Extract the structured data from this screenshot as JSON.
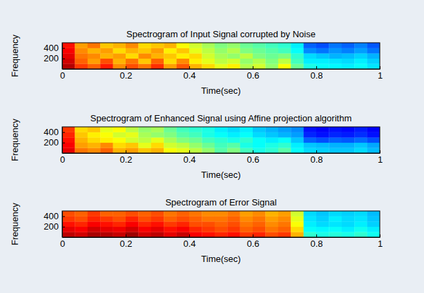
{
  "chart_data": [
    {
      "type": "heatmap",
      "title": "Spectrogram of Input Signal corrupted by Noise",
      "xlabel": "Time(sec)",
      "ylabel": "Frequency",
      "xlim": [
        0,
        1
      ],
      "xticks": [
        0,
        0.2,
        0.4,
        0.6,
        0.8,
        1
      ],
      "ylim": [
        0,
        500
      ],
      "yticks": [
        200,
        400
      ],
      "zlim": [
        0,
        100
      ],
      "x": [
        0,
        0.04,
        0.08,
        0.12,
        0.16,
        0.2,
        0.24,
        0.28,
        0.32,
        0.36,
        0.4,
        0.44,
        0.48,
        0.52,
        0.56,
        0.6,
        0.64,
        0.68,
        0.72,
        0.76,
        0.8,
        0.84,
        0.88,
        0.92,
        0.96
      ],
      "y": [
        0,
        100,
        200,
        300,
        400
      ],
      "z": [
        [
          95,
          82,
          78,
          85,
          74,
          80,
          76,
          83,
          72,
          79,
          70,
          66,
          60,
          64,
          55,
          58,
          52,
          62,
          48,
          40,
          38,
          37,
          36,
          38,
          35
        ],
        [
          92,
          78,
          72,
          80,
          70,
          76,
          68,
          78,
          66,
          74,
          64,
          60,
          56,
          58,
          52,
          55,
          50,
          56,
          44,
          36,
          36,
          35,
          34,
          36,
          33
        ],
        [
          90,
          76,
          74,
          70,
          72,
          66,
          74,
          70,
          68,
          64,
          66,
          58,
          54,
          52,
          56,
          50,
          48,
          50,
          42,
          34,
          32,
          30,
          31,
          33,
          30
        ],
        [
          88,
          74,
          70,
          72,
          66,
          70,
          68,
          72,
          64,
          68,
          60,
          56,
          52,
          55,
          50,
          48,
          46,
          44,
          38,
          26,
          24,
          27,
          25,
          28,
          24
        ],
        [
          86,
          72,
          76,
          68,
          70,
          74,
          66,
          68,
          70,
          62,
          58,
          54,
          50,
          52,
          48,
          46,
          44,
          42,
          36,
          22,
          20,
          24,
          22,
          25,
          21
        ]
      ]
    },
    {
      "type": "heatmap",
      "title": "Spectrogram of Enhanced Signal using Affine projection algorithm",
      "xlabel": "Time(sec)",
      "ylabel": "Frequency",
      "xlim": [
        0,
        1
      ],
      "xticks": [
        0,
        0.2,
        0.4,
        0.6,
        0.8,
        1
      ],
      "ylim": [
        0,
        500
      ],
      "yticks": [
        200,
        400
      ],
      "zlim": [
        0,
        100
      ],
      "x": [
        0,
        0.04,
        0.08,
        0.12,
        0.16,
        0.2,
        0.24,
        0.28,
        0.32,
        0.36,
        0.4,
        0.44,
        0.48,
        0.52,
        0.56,
        0.6,
        0.64,
        0.68,
        0.72,
        0.76,
        0.8,
        0.84,
        0.88,
        0.92,
        0.96
      ],
      "y": [
        0,
        100,
        200,
        300,
        400
      ],
      "z": [
        [
          90,
          76,
          74,
          78,
          70,
          72,
          68,
          70,
          62,
          60,
          56,
          52,
          46,
          50,
          44,
          40,
          42,
          46,
          38,
          34,
          33,
          32,
          32,
          34,
          31
        ],
        [
          88,
          72,
          70,
          74,
          66,
          68,
          60,
          66,
          58,
          56,
          52,
          48,
          44,
          46,
          40,
          38,
          40,
          42,
          36,
          32,
          31,
          30,
          30,
          32,
          29
        ],
        [
          86,
          70,
          66,
          64,
          62,
          58,
          56,
          60,
          54,
          50,
          48,
          44,
          42,
          40,
          42,
          38,
          36,
          38,
          32,
          22,
          20,
          22,
          21,
          23,
          20
        ],
        [
          84,
          68,
          64,
          62,
          58,
          60,
          54,
          52,
          50,
          46,
          44,
          40,
          38,
          36,
          38,
          34,
          32,
          30,
          28,
          16,
          14,
          16,
          15,
          17,
          14
        ],
        [
          82,
          66,
          68,
          60,
          62,
          56,
          52,
          54,
          48,
          44,
          42,
          40,
          36,
          34,
          36,
          32,
          30,
          28,
          26,
          14,
          12,
          14,
          13,
          15,
          12
        ]
      ]
    },
    {
      "type": "heatmap",
      "title": "Spectrogram of Error Signal",
      "xlabel": "Time(sec)",
      "ylabel": "Frequency",
      "xlim": [
        0,
        1
      ],
      "xticks": [
        0,
        0.2,
        0.4,
        0.6,
        0.8,
        1
      ],
      "ylim": [
        0,
        500
      ],
      "yticks": [
        200,
        400
      ],
      "zlim": [
        0,
        100
      ],
      "x": [
        0,
        0.04,
        0.08,
        0.12,
        0.16,
        0.2,
        0.24,
        0.28,
        0.32,
        0.36,
        0.4,
        0.44,
        0.48,
        0.52,
        0.56,
        0.6,
        0.64,
        0.68,
        0.72,
        0.76,
        0.8,
        0.84,
        0.88,
        0.92,
        0.96
      ],
      "y": [
        0,
        100,
        200,
        300,
        400
      ],
      "z": [
        [
          94,
          92,
          96,
          95,
          93,
          97,
          92,
          94,
          90,
          93,
          88,
          86,
          84,
          86,
          82,
          84,
          80,
          82,
          70,
          42,
          40,
          41,
          40,
          42,
          39
        ],
        [
          90,
          88,
          92,
          90,
          89,
          92,
          88,
          90,
          86,
          88,
          84,
          82,
          80,
          82,
          78,
          80,
          76,
          78,
          66,
          38,
          37,
          38,
          36,
          39,
          36
        ],
        [
          86,
          84,
          88,
          86,
          84,
          88,
          84,
          86,
          82,
          84,
          80,
          80,
          78,
          80,
          76,
          78,
          74,
          76,
          62,
          36,
          34,
          35,
          34,
          36,
          33
        ],
        [
          82,
          80,
          84,
          82,
          80,
          84,
          80,
          82,
          78,
          80,
          78,
          76,
          76,
          78,
          74,
          76,
          72,
          74,
          60,
          35,
          33,
          36,
          34,
          35,
          32
        ],
        [
          80,
          78,
          82,
          78,
          78,
          80,
          78,
          80,
          76,
          78,
          76,
          74,
          74,
          76,
          72,
          74,
          70,
          72,
          58,
          34,
          32,
          34,
          33,
          34,
          31
        ]
      ]
    }
  ]
}
